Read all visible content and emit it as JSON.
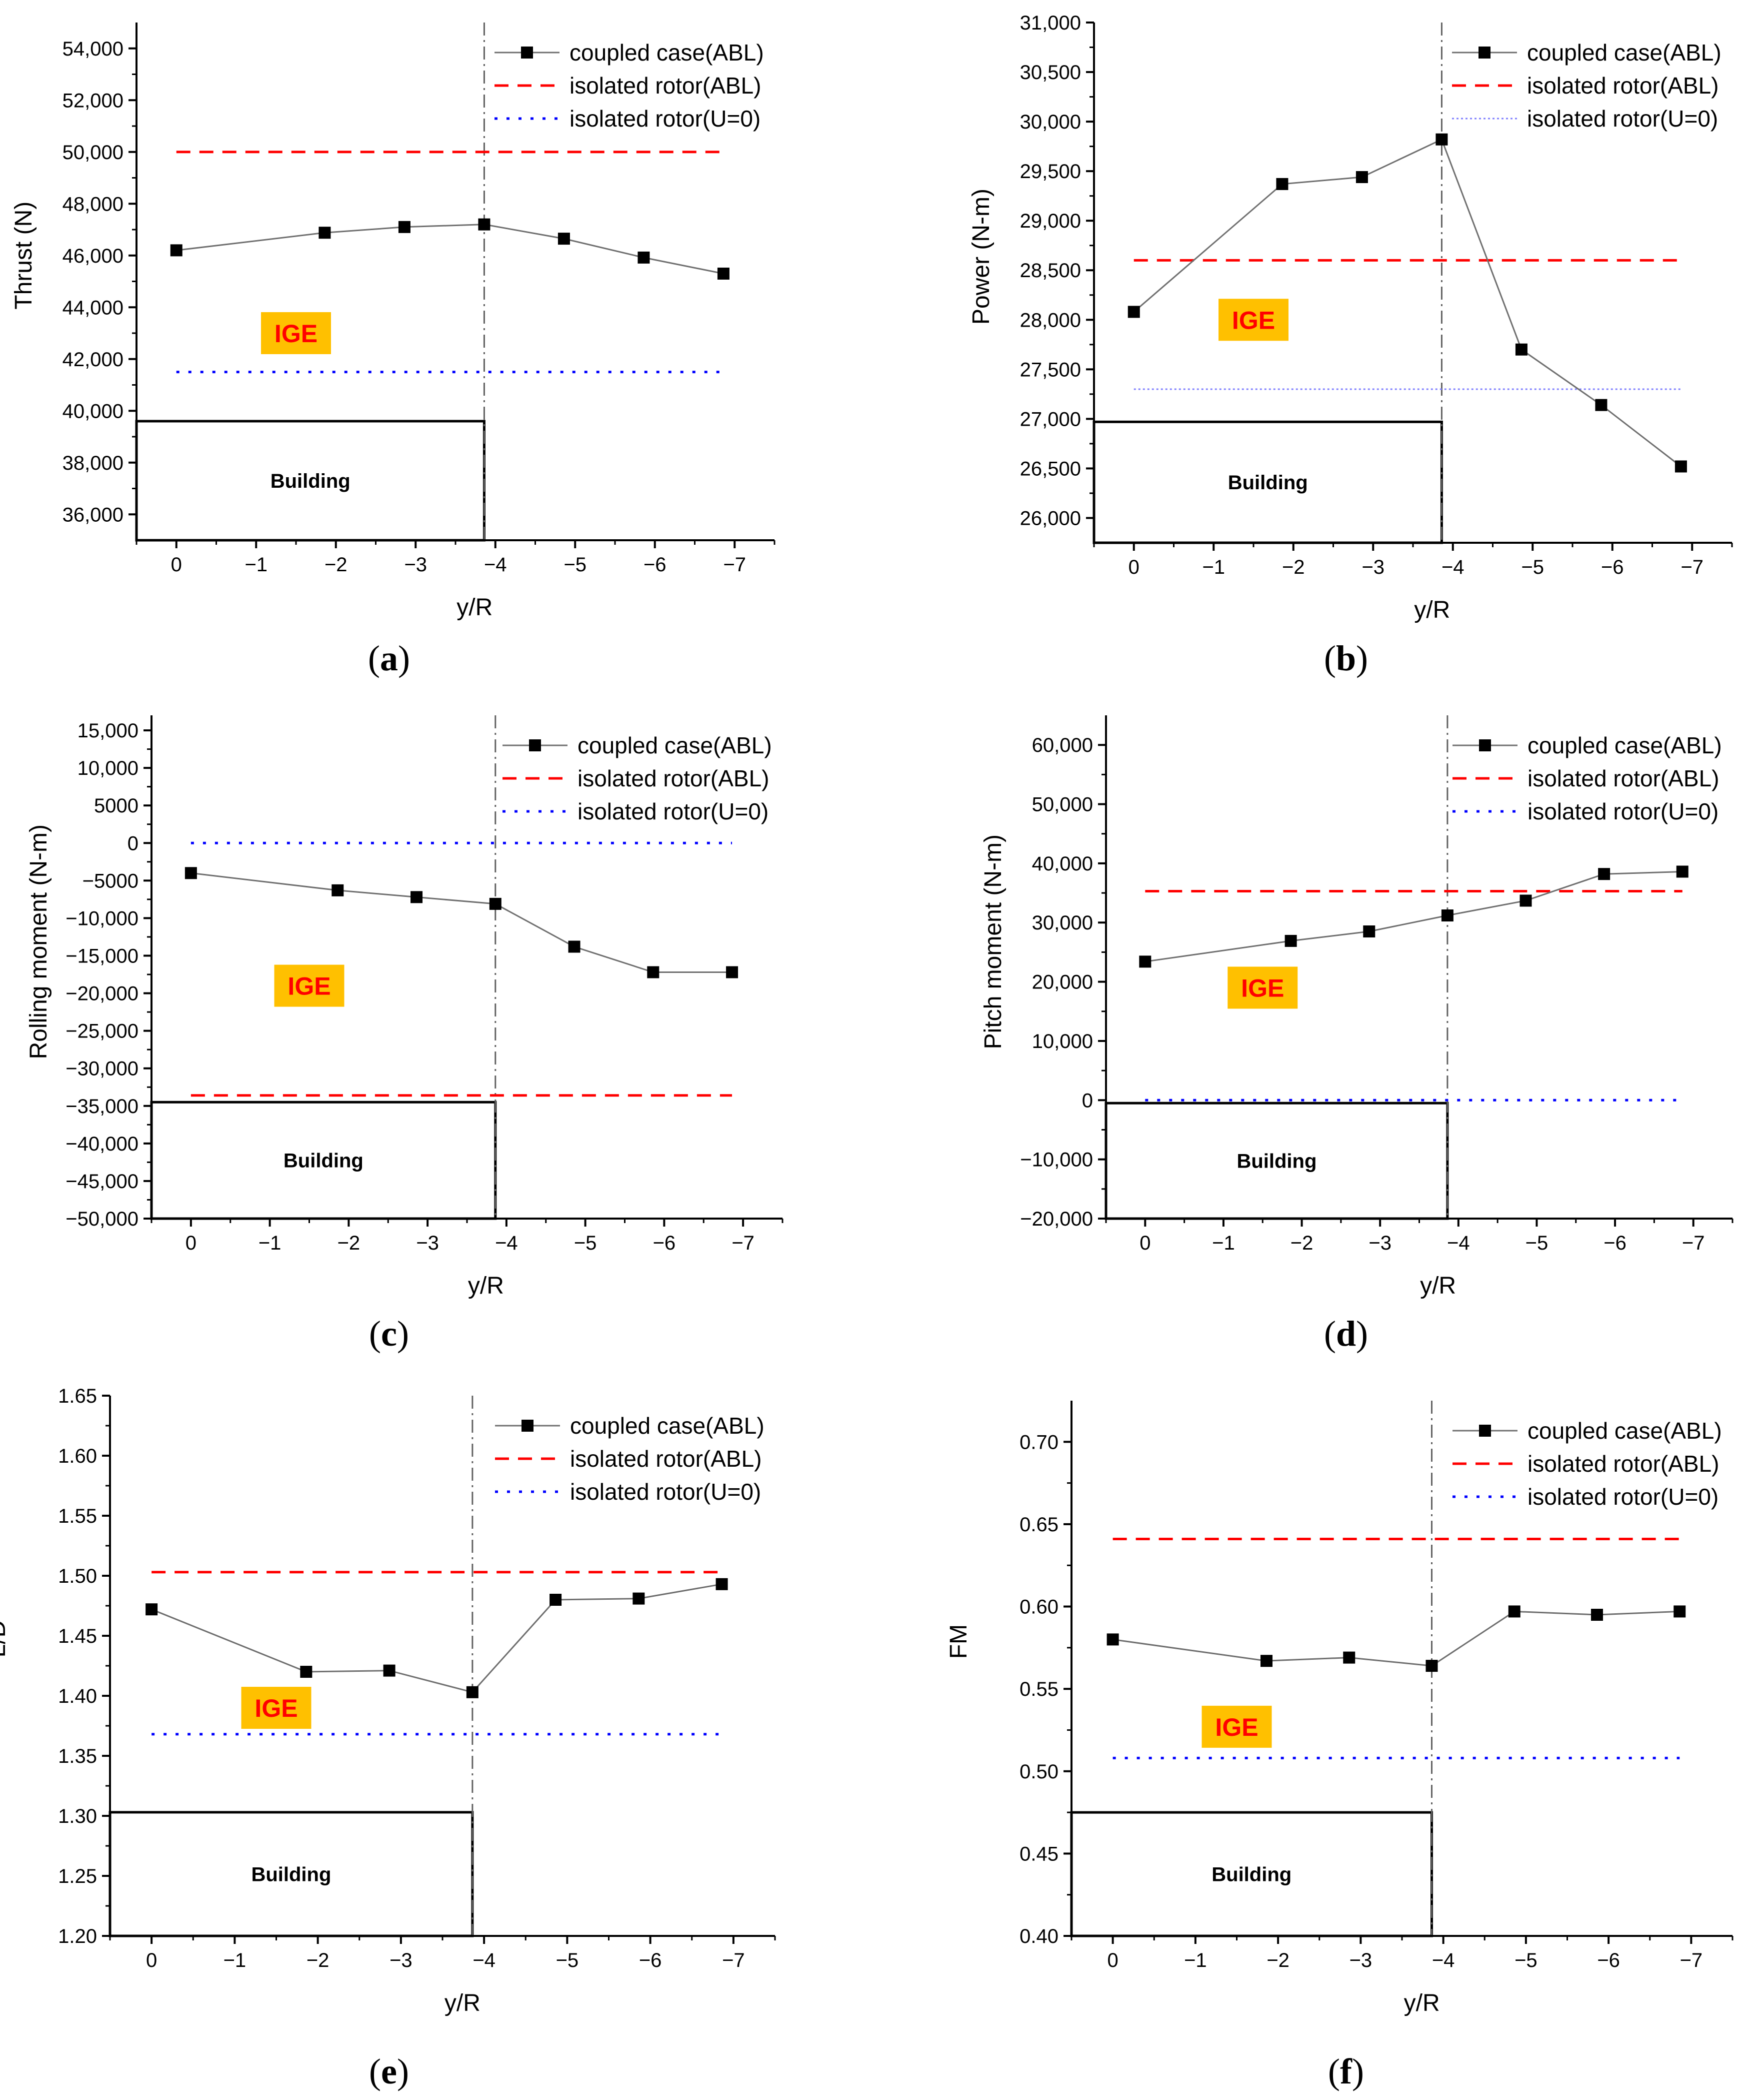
{
  "chart_data": [
    {
      "type": "line",
      "panel_label": "a",
      "ylabel": "Thrust (N)",
      "xlabel": "y/R",
      "xlim": [
        0.5,
        -7.5
      ],
      "ylim": [
        35000,
        55000
      ],
      "yticks": [
        36000,
        38000,
        40000,
        42000,
        44000,
        46000,
        48000,
        50000,
        52000,
        54000
      ],
      "ytick_labels": [
        "36,000",
        "38,000",
        "40,000",
        "42,000",
        "44,000",
        "46,000",
        "48,000",
        "50,000",
        "52,000",
        "54,000"
      ],
      "xticks": [
        0,
        -1,
        -2,
        -3,
        -4,
        -5,
        -6,
        -7
      ],
      "xtick_labels": [
        "0",
        "−1",
        "−2",
        "−3",
        "−4",
        "−5",
        "−6",
        "−7"
      ],
      "series": [
        {
          "name": "coupled case(ABL)",
          "style": "line-marker",
          "color": "#000000",
          "x": [
            0,
            -1.86,
            -2.86,
            -3.86,
            -4.86,
            -5.86,
            -6.86
          ],
          "values": [
            46200,
            46880,
            47100,
            47200,
            46650,
            45920,
            45300
          ]
        },
        {
          "name": "isolated rotor(ABL)",
          "style": "dashed",
          "color": "#ff0000",
          "x_range": [
            0,
            -6.86
          ],
          "value": 50000
        },
        {
          "name": "isolated rotor(U=0)",
          "style": "dotted",
          "color": "#0000ff",
          "x_range": [
            0,
            -6.86
          ],
          "value": 41500
        }
      ],
      "building": {
        "label": "Building",
        "x_end": -3.86,
        "top": 39600
      },
      "vline_x": -3.86,
      "annotation": {
        "text": "IGE",
        "x": -1.5,
        "y": 43000
      },
      "legend_position": "top-right"
    },
    {
      "type": "line",
      "panel_label": "b",
      "ylabel": "Power (N-m)",
      "xlabel": "y/R",
      "xlim": [
        0.5,
        -7.5
      ],
      "ylim": [
        25750,
        31000
      ],
      "yticks": [
        26000,
        26500,
        27000,
        27500,
        28000,
        28500,
        29000,
        29500,
        30000,
        30500,
        31000
      ],
      "ytick_labels": [
        "26,000",
        "26,500",
        "27,000",
        "27,500",
        "28,000",
        "28,500",
        "29,000",
        "29,500",
        "30,000",
        "30,500",
        "31,000"
      ],
      "xticks": [
        0,
        -1,
        -2,
        -3,
        -4,
        -5,
        -6,
        -7
      ],
      "xtick_labels": [
        "0",
        "−1",
        "−2",
        "−3",
        "−4",
        "−5",
        "−6",
        "−7"
      ],
      "series": [
        {
          "name": "coupled case(ABL)",
          "style": "line-marker",
          "color": "#000000",
          "x": [
            0,
            -1.86,
            -2.86,
            -3.86,
            -4.86,
            -5.86,
            -6.86
          ],
          "values": [
            28080,
            29370,
            29440,
            29820,
            27700,
            27140,
            26520
          ]
        },
        {
          "name": "isolated rotor(ABL)",
          "style": "dashed",
          "color": "#ff0000",
          "x_range": [
            0,
            -6.86
          ],
          "value": 28600
        },
        {
          "name": "isolated rotor(U=0)",
          "style": "fine-dotted",
          "color": "#8080ff",
          "x_range": [
            0,
            -6.86
          ],
          "value": 27300
        }
      ],
      "building": {
        "label": "Building",
        "x_end": -3.86,
        "top": 26970
      },
      "vline_x": -3.86,
      "annotation": {
        "text": "IGE",
        "x": -1.5,
        "y": 28000
      },
      "legend_position": "top-right"
    },
    {
      "type": "line",
      "panel_label": "c",
      "ylabel": "Rolling moment (N-m)",
      "xlabel": "y/R",
      "xlim": [
        0.5,
        -7.5
      ],
      "ylim": [
        -50000,
        17000
      ],
      "yticks": [
        -50000,
        -45000,
        -40000,
        -35000,
        -30000,
        -25000,
        -20000,
        -15000,
        -10000,
        -5000,
        0,
        5000,
        10000,
        15000
      ],
      "ytick_labels": [
        "−50,000",
        "−45,000",
        "−40,000",
        "−35,000",
        "−30,000",
        "−25,000",
        "−20,000",
        "−15,000",
        "−10,000",
        "−5000",
        "0",
        "5000",
        "10,000",
        "15,000"
      ],
      "xticks": [
        0,
        -1,
        -2,
        -3,
        -4,
        -5,
        -6,
        -7
      ],
      "xtick_labels": [
        "0",
        "−1",
        "−2",
        "−3",
        "−4",
        "−5",
        "−6",
        "−7"
      ],
      "series": [
        {
          "name": "coupled case(ABL)",
          "style": "line-marker",
          "color": "#000000",
          "x": [
            0,
            -1.86,
            -2.86,
            -3.86,
            -4.86,
            -5.86,
            -6.86
          ],
          "values": [
            -4000,
            -6300,
            -7200,
            -8100,
            -13800,
            -17200,
            -17200
          ]
        },
        {
          "name": "isolated rotor(ABL)",
          "style": "dashed",
          "color": "#ff0000",
          "x_range": [
            0,
            -6.86
          ],
          "value": -33600
        },
        {
          "name": "isolated rotor(U=0)",
          "style": "dotted",
          "color": "#0000ff",
          "x_range": [
            0,
            -6.86
          ],
          "value": 0
        }
      ],
      "building": {
        "label": "Building",
        "x_end": -3.86,
        "top": -34500
      },
      "vline_x": -3.86,
      "annotation": {
        "text": "IGE",
        "x": -1.5,
        "y": -19000
      },
      "legend_position": "top-right"
    },
    {
      "type": "line",
      "panel_label": "d",
      "ylabel": "Pitch moment (N-m)",
      "xlabel": "y/R",
      "xlim": [
        0.5,
        -7.5
      ],
      "ylim": [
        -20000,
        65000
      ],
      "yticks": [
        -20000,
        -10000,
        0,
        10000,
        20000,
        30000,
        40000,
        50000,
        60000
      ],
      "ytick_labels": [
        "−20,000",
        "−10,000",
        "0",
        "10,000",
        "20,000",
        "30,000",
        "40,000",
        "50,000",
        "60,000"
      ],
      "xticks": [
        0,
        -1,
        -2,
        -3,
        -4,
        -5,
        -6,
        -7
      ],
      "xtick_labels": [
        "0",
        "−1",
        "−2",
        "−3",
        "−4",
        "−5",
        "−6",
        "−7"
      ],
      "series": [
        {
          "name": "coupled case(ABL)",
          "style": "line-marker",
          "color": "#000000",
          "x": [
            0,
            -1.86,
            -2.86,
            -3.86,
            -4.86,
            -5.86,
            -6.86
          ],
          "values": [
            23400,
            26900,
            28500,
            31200,
            33700,
            38200,
            38600
          ]
        },
        {
          "name": "isolated rotor(ABL)",
          "style": "dashed",
          "color": "#ff0000",
          "x_range": [
            0,
            -6.86
          ],
          "value": 35300
        },
        {
          "name": "isolated rotor(U=0)",
          "style": "dotted",
          "color": "#0000ff",
          "x_range": [
            0,
            -6.86
          ],
          "value": 0
        }
      ],
      "building": {
        "label": "Building",
        "x_end": -3.86,
        "top": -500
      },
      "vline_x": -3.86,
      "annotation": {
        "text": "IGE",
        "x": -1.5,
        "y": 19000
      },
      "legend_position": "top-right"
    },
    {
      "type": "line",
      "panel_label": "e",
      "ylabel": "L/D",
      "xlabel": "y/R",
      "xlim": [
        0.5,
        -7.5
      ],
      "ylim": [
        1.2,
        1.65
      ],
      "yticks": [
        1.2,
        1.25,
        1.3,
        1.35,
        1.4,
        1.45,
        1.5,
        1.55,
        1.6,
        1.65
      ],
      "ytick_labels": [
        "1.20",
        "1.25",
        "1.30",
        "1.35",
        "1.40",
        "1.45",
        "1.50",
        "1.55",
        "1.60",
        "1.65"
      ],
      "xticks": [
        0,
        -1,
        -2,
        -3,
        -4,
        -5,
        -6,
        -7
      ],
      "xtick_labels": [
        "0",
        "−1",
        "−2",
        "−3",
        "−4",
        "−5",
        "−6",
        "−7"
      ],
      "series": [
        {
          "name": "coupled case(ABL)",
          "style": "line-marker",
          "color": "#000000",
          "x": [
            0,
            -1.86,
            -2.86,
            -3.86,
            -4.86,
            -5.86,
            -6.86
          ],
          "values": [
            1.472,
            1.42,
            1.421,
            1.403,
            1.48,
            1.481,
            1.493
          ]
        },
        {
          "name": "isolated rotor(ABL)",
          "style": "dashed",
          "color": "#ff0000",
          "x_range": [
            0,
            -6.86
          ],
          "value": 1.503
        },
        {
          "name": "isolated rotor(U=0)",
          "style": "dotted",
          "color": "#0000ff",
          "x_range": [
            0,
            -6.86
          ],
          "value": 1.368
        }
      ],
      "building": {
        "label": "Building",
        "x_end": -3.86,
        "top": 1.303
      },
      "vline_x": -3.86,
      "annotation": {
        "text": "IGE",
        "x": -1.5,
        "y": 1.39
      },
      "legend_position": "top-right"
    },
    {
      "type": "line",
      "panel_label": "f",
      "ylabel": "FM",
      "xlabel": "y/R",
      "xlim": [
        0.5,
        -7.5
      ],
      "ylim": [
        0.4,
        0.725
      ],
      "yticks": [
        0.4,
        0.45,
        0.5,
        0.55,
        0.6,
        0.65,
        0.7
      ],
      "ytick_labels": [
        "0.40",
        "0.45",
        "0.50",
        "0.55",
        "0.60",
        "0.65",
        "0.70"
      ],
      "xticks": [
        0,
        -1,
        -2,
        -3,
        -4,
        -5,
        -6,
        -7
      ],
      "xtick_labels": [
        "0",
        "−1",
        "−2",
        "−3",
        "−4",
        "−5",
        "−6",
        "−7"
      ],
      "series": [
        {
          "name": "coupled case(ABL)",
          "style": "line-marker",
          "color": "#000000",
          "x": [
            0,
            -1.86,
            -2.86,
            -3.86,
            -4.86,
            -5.86,
            -6.86
          ],
          "values": [
            0.58,
            0.567,
            0.569,
            0.564,
            0.597,
            0.595,
            0.597
          ]
        },
        {
          "name": "isolated rotor(ABL)",
          "style": "dashed",
          "color": "#ff0000",
          "x_range": [
            0,
            -6.86
          ],
          "value": 0.641
        },
        {
          "name": "isolated rotor(U=0)",
          "style": "dotted",
          "color": "#0000ff",
          "x_range": [
            0,
            -6.86
          ],
          "value": 0.508
        }
      ],
      "building": {
        "label": "Building",
        "x_end": -3.86,
        "top": 0.475
      },
      "vline_x": -3.86,
      "annotation": {
        "text": "IGE",
        "x": -1.5,
        "y": 0.527
      },
      "legend_position": "top-right"
    }
  ],
  "colors": {
    "ige_background": "#ffc000",
    "ige_text": "#ff0000",
    "vline": "#606060",
    "coupled_line": "#707070"
  }
}
